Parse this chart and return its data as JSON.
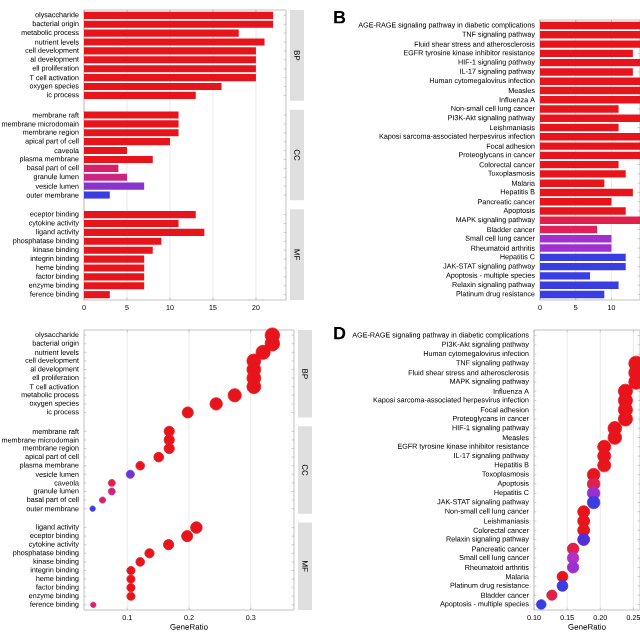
{
  "chart_data": [
    {
      "type": "bar",
      "orientation": "horizontal",
      "grid": "x",
      "xlim": [
        0,
        23.5
      ],
      "xticks": [
        0,
        5,
        10,
        15,
        20
      ],
      "categories": [
        "olysaccharide",
        "bacterial origin",
        "metabolic process",
        "nutrient levels",
        "cell development",
        "al development",
        "ell proliferation",
        "T cell activation",
        "oxygen species",
        "ic process",
        "membrane raft",
        "membrane microdomain",
        "membrane region",
        "apical part of cell",
        "caveola",
        "plasma membrane",
        "basal part of cell",
        "granule lumen",
        "vesicle lumen",
        "outer membrane",
        "eceptor binding",
        "cytokine activity",
        "ligand activity",
        "phosphatase binding",
        "kinase binding",
        "integrin binding",
        "heme binding",
        "factor binding",
        "enzyme binding",
        "ference binding"
      ],
      "series": [
        {
          "name": "BP",
          "values": [
            22,
            22,
            18,
            21,
            20,
            20,
            20,
            20,
            16,
            13,
            null,
            null,
            null,
            null,
            null,
            null,
            null,
            null,
            null,
            null,
            null,
            null,
            null,
            null,
            null,
            null,
            null,
            null,
            null,
            null
          ],
          "colors": [
            "#e8141c",
            "#e8141c",
            "#e8141c",
            "#e8141c",
            "#e8141c",
            "#e8141c",
            "#e8141c",
            "#e8141c",
            "#e8141c",
            "#e8141c",
            null,
            null,
            null,
            null,
            null,
            null,
            null,
            null,
            null,
            null,
            null,
            null,
            null,
            null,
            null,
            null,
            null,
            null,
            null,
            null
          ]
        },
        {
          "name": "CC",
          "values": [
            null,
            null,
            null,
            null,
            null,
            null,
            null,
            null,
            null,
            null,
            11,
            11,
            11,
            10,
            5,
            8,
            4,
            5,
            7,
            3,
            null,
            null,
            null,
            null,
            null,
            null,
            null,
            null,
            null,
            null
          ],
          "colors": [
            null,
            null,
            null,
            null,
            null,
            null,
            null,
            null,
            null,
            null,
            "#e8141c",
            "#e8141c",
            "#e8141c",
            "#e8141c",
            "#e8141c",
            "#e8141c",
            "#d8206a",
            "#cc2480",
            "#8a34d0",
            "#3a3ee0",
            null,
            null,
            null,
            null,
            null,
            null,
            null,
            null,
            null,
            null
          ]
        },
        {
          "name": "MF",
          "values": [
            null,
            null,
            null,
            null,
            null,
            null,
            null,
            null,
            null,
            null,
            null,
            null,
            null,
            null,
            null,
            null,
            null,
            null,
            null,
            null,
            13,
            11,
            14,
            9,
            8,
            7,
            7,
            7,
            7,
            3
          ],
          "colors": [
            null,
            null,
            null,
            null,
            null,
            null,
            null,
            null,
            null,
            null,
            null,
            null,
            null,
            null,
            null,
            null,
            null,
            null,
            null,
            null,
            "#e8141c",
            "#e8141c",
            "#e8141c",
            "#e8141c",
            "#e8141c",
            "#e8141c",
            "#e8141c",
            "#e8141c",
            "#e8141c",
            "#e8141c"
          ]
        }
      ]
    },
    {
      "type": "bar",
      "orientation": "horizontal",
      "title": "B",
      "grid": "x",
      "xlim": [
        0,
        14
      ],
      "xticks": [
        0,
        5,
        10
      ],
      "categories": [
        "AGE-RAGE signaling pathway in diabetic complications",
        "TNF signaling pathway",
        "Fluid shear stress and atherosclerosis",
        "EGFR tyrosine kinase inhibitor resistance",
        "HIF-1 signaling pathway",
        "IL-17 signaling pathway",
        "Human cytomegalovirus infection",
        "Measles",
        "Influenza A",
        "Non-small cell lung cancer",
        "PI3K-Akt signaling pathway",
        "Leishmaniasis",
        "Kaposi sarcoma-associated herpesvirus infection",
        "Focal adhesion",
        "Proteoglycans in cancer",
        "Colorectal cancer",
        "Toxoplasmosis",
        "Malaria",
        "Hepatitis B",
        "Pancreatic cancer",
        "Apoptosis",
        "MAPK signaling pathway",
        "Bladder cancer",
        "Small cell lung cancer",
        "Rheumatoid arthritis",
        "Hepatitis C",
        "JAK-STAT signaling pathway",
        "Apoptosis - multiple species",
        "Relaxin signaling pathway",
        "Platinum drug resistance"
      ],
      "series": [
        {
          "values": [
            14,
            14,
            14,
            13,
            14,
            13,
            14,
            14,
            14,
            11,
            14,
            11,
            14,
            14,
            14,
            11,
            12,
            9,
            13,
            10,
            12,
            14,
            8,
            10,
            10,
            12,
            12,
            7,
            11,
            9
          ],
          "colors": [
            "#e8141c",
            "#e8141c",
            "#e8141c",
            "#e8141c",
            "#e8141c",
            "#e8141c",
            "#e8141c",
            "#e8141c",
            "#e8141c",
            "#e8141c",
            "#e8141c",
            "#e8141c",
            "#e8141c",
            "#e8141c",
            "#e8141c",
            "#e8141c",
            "#e8141c",
            "#e8141c",
            "#e8141c",
            "#e8141c",
            "#e8141c",
            "#e0204a",
            "#e0205a",
            "#a030d0",
            "#a030d0",
            "#3a3ee0",
            "#3a3ee0",
            "#3a3ee0",
            "#3a3ee0",
            "#3a3ee0"
          ]
        }
      ]
    },
    {
      "type": "bubble",
      "orientation": "horizontal",
      "xlabel": "GeneRatio",
      "grid": "x",
      "xlim": [
        0.03,
        0.37
      ],
      "xticks": [
        0.1,
        0.2,
        0.3
      ],
      "categories": [
        "olysaccharide",
        "bacterial origin",
        "nutrient levels",
        "cell development",
        "al development",
        "ell proliferation",
        "T cell activation",
        "metabolic process",
        "oxygen species",
        "ic process",
        "membrane raft",
        "membrane microdomain",
        "membrane region",
        "apical part of cell",
        "plasma membrane",
        "vesicle lumen",
        "caveola",
        "granule lumen",
        "basal part of cell",
        "outer membrane",
        "ligand activity",
        "eceptor binding",
        "cytokine activity",
        "phosphatase binding",
        "kinase binding",
        "integrin binding",
        "heme binding",
        "factor binding",
        "enzyme binding",
        "ference binding"
      ],
      "series": [
        {
          "name": "BP",
          "values": [
            0.335,
            0.335,
            0.32,
            0.305,
            0.305,
            0.305,
            0.305,
            0.274,
            0.244,
            0.198,
            null,
            null,
            null,
            null,
            null,
            null,
            null,
            null,
            null,
            null,
            null,
            null,
            null,
            null,
            null,
            null,
            null,
            null,
            null,
            null
          ],
          "sizes": [
            1,
            1,
            0.95,
            0.91,
            0.91,
            0.91,
            0.91,
            0.82,
            0.73,
            0.59,
            null,
            null,
            null,
            null,
            null,
            null,
            null,
            null,
            null,
            null,
            null,
            null,
            null,
            null,
            null,
            null,
            null,
            null,
            null,
            null
          ],
          "colors": [
            "#e8141c",
            "#e8141c",
            "#e8141c",
            "#e8141c",
            "#e8141c",
            "#e8141c",
            "#e8141c",
            "#e8141c",
            "#e8141c",
            "#e8141c",
            null,
            null,
            null,
            null,
            null,
            null,
            null,
            null,
            null,
            null,
            null,
            null,
            null,
            null,
            null,
            null,
            null,
            null,
            null,
            null
          ]
        },
        {
          "name": "CC",
          "values": [
            null,
            null,
            null,
            null,
            null,
            null,
            null,
            null,
            null,
            null,
            0.168,
            0.168,
            0.168,
            0.151,
            0.121,
            0.105,
            0.075,
            0.075,
            0.06,
            0.044,
            null,
            null,
            null,
            null,
            null,
            null,
            null,
            null,
            null,
            null
          ],
          "sizes": [
            null,
            null,
            null,
            null,
            null,
            null,
            null,
            null,
            null,
            null,
            0.5,
            0.5,
            0.5,
            0.45,
            0.36,
            0.32,
            0.23,
            0.23,
            0.18,
            0.14,
            null,
            null,
            null,
            null,
            null,
            null,
            null,
            null,
            null,
            null
          ],
          "colors": [
            null,
            null,
            null,
            null,
            null,
            null,
            null,
            null,
            null,
            null,
            "#e8141c",
            "#e8141c",
            "#e8141c",
            "#e8141c",
            "#e8141c",
            "#6a38d8",
            "#e0204a",
            "#cc2480",
            "#d8206a",
            "#3a3ee0",
            null,
            null,
            null,
            null,
            null,
            null,
            null,
            null,
            null,
            null
          ]
        },
        {
          "name": "MF",
          "values": [
            null,
            null,
            null,
            null,
            null,
            null,
            null,
            null,
            null,
            null,
            null,
            null,
            null,
            null,
            null,
            null,
            null,
            null,
            null,
            null,
            0.212,
            0.197,
            0.167,
            0.136,
            0.121,
            0.106,
            0.106,
            0.106,
            0.106,
            0.045
          ],
          "sizes": [
            null,
            null,
            null,
            null,
            null,
            null,
            null,
            null,
            null,
            null,
            null,
            null,
            null,
            null,
            null,
            null,
            null,
            null,
            null,
            null,
            0.64,
            0.59,
            0.5,
            0.41,
            0.36,
            0.32,
            0.32,
            0.32,
            0.32,
            0.14
          ],
          "colors": [
            null,
            null,
            null,
            null,
            null,
            null,
            null,
            null,
            null,
            null,
            null,
            null,
            null,
            null,
            null,
            null,
            null,
            null,
            null,
            null,
            "#e8141c",
            "#e8141c",
            "#e8141c",
            "#e8141c",
            "#e8141c",
            "#e8141c",
            "#e8141c",
            "#e8141c",
            "#e8141c",
            "#d8206a"
          ]
        }
      ]
    },
    {
      "type": "bubble",
      "orientation": "horizontal",
      "title": "D",
      "xlabel": "GeneRatio",
      "grid": "x",
      "xlim": [
        0.1,
        0.26
      ],
      "xticks": [
        {
          "value": 0.1,
          "label": "0.10"
        },
        {
          "value": 0.15,
          "label": "0.15"
        },
        {
          "value": 0.2,
          "label": "0.20"
        },
        {
          "value": 0.25,
          "label": "0.25"
        }
      ],
      "categories": [
        "AGE-RAGE signaling pathway in diabetic complications",
        "PI3K-Akt signaling pathway",
        "Human cytomegalovirus infection",
        "TNF signaling pathway",
        "Fluid shear stress and atherosclerosis",
        "MAPK signaling pathway",
        "Influenza A",
        "Kaposi sarcoma-associated herpesvirus infection",
        "Focal adhesion",
        "Proteoglycans in cancer",
        "HIF-1 signaling pathway",
        "Measles",
        "EGFR tyrosine kinase inhibitor resistance",
        "IL-17 signaling pathway",
        "Hepatitis B",
        "Toxoplasmosis",
        "Apoptosis",
        "Hepatitis C",
        "JAK-STAT signaling pathway",
        "Non-small cell lung cancer",
        "Leishmaniasis",
        "Colorectal cancer",
        "Relaxin signaling pathway",
        "Pancreatic cancer",
        "Small cell lung cancer",
        "Rheumatoid arthritis",
        "Malaria",
        "Platinum drug resistance",
        "Bladder cancer",
        "Apoptosis - multiple species"
      ],
      "series": [
        {
          "values": [
            null,
            null,
            null,
            0.254,
            0.254,
            0.254,
            0.238,
            0.238,
            0.238,
            0.238,
            0.222,
            0.222,
            0.206,
            0.206,
            0.206,
            0.19,
            0.19,
            0.19,
            0.19,
            0.175,
            0.175,
            0.175,
            0.175,
            0.159,
            0.159,
            0.159,
            0.143,
            0.143,
            0.127,
            0.111
          ],
          "sizes": [
            null,
            null,
            null,
            1,
            1,
            1,
            0.94,
            0.94,
            0.94,
            0.94,
            0.88,
            0.88,
            0.81,
            0.81,
            0.81,
            0.75,
            0.75,
            0.75,
            0.75,
            0.69,
            0.69,
            0.69,
            0.69,
            0.63,
            0.63,
            0.63,
            0.56,
            0.56,
            0.5,
            0.44
          ],
          "colors": [
            null,
            null,
            null,
            "#e8141c",
            "#e8141c",
            "#e8141c",
            "#e8141c",
            "#e8141c",
            "#e8141c",
            "#e8141c",
            "#e8141c",
            "#e8141c",
            "#e8141c",
            "#e8141c",
            "#e8141c",
            "#e8141c",
            "#e0204a",
            "#9b30d0",
            "#3a3ee0",
            "#e8141c",
            "#e8141c",
            "#e8141c",
            "#5030d8",
            "#e0204a",
            "#b030c8",
            "#9b30d0",
            "#e8141c",
            "#3a3ee0",
            "#e0204a",
            "#3a3ee0"
          ]
        }
      ]
    }
  ]
}
